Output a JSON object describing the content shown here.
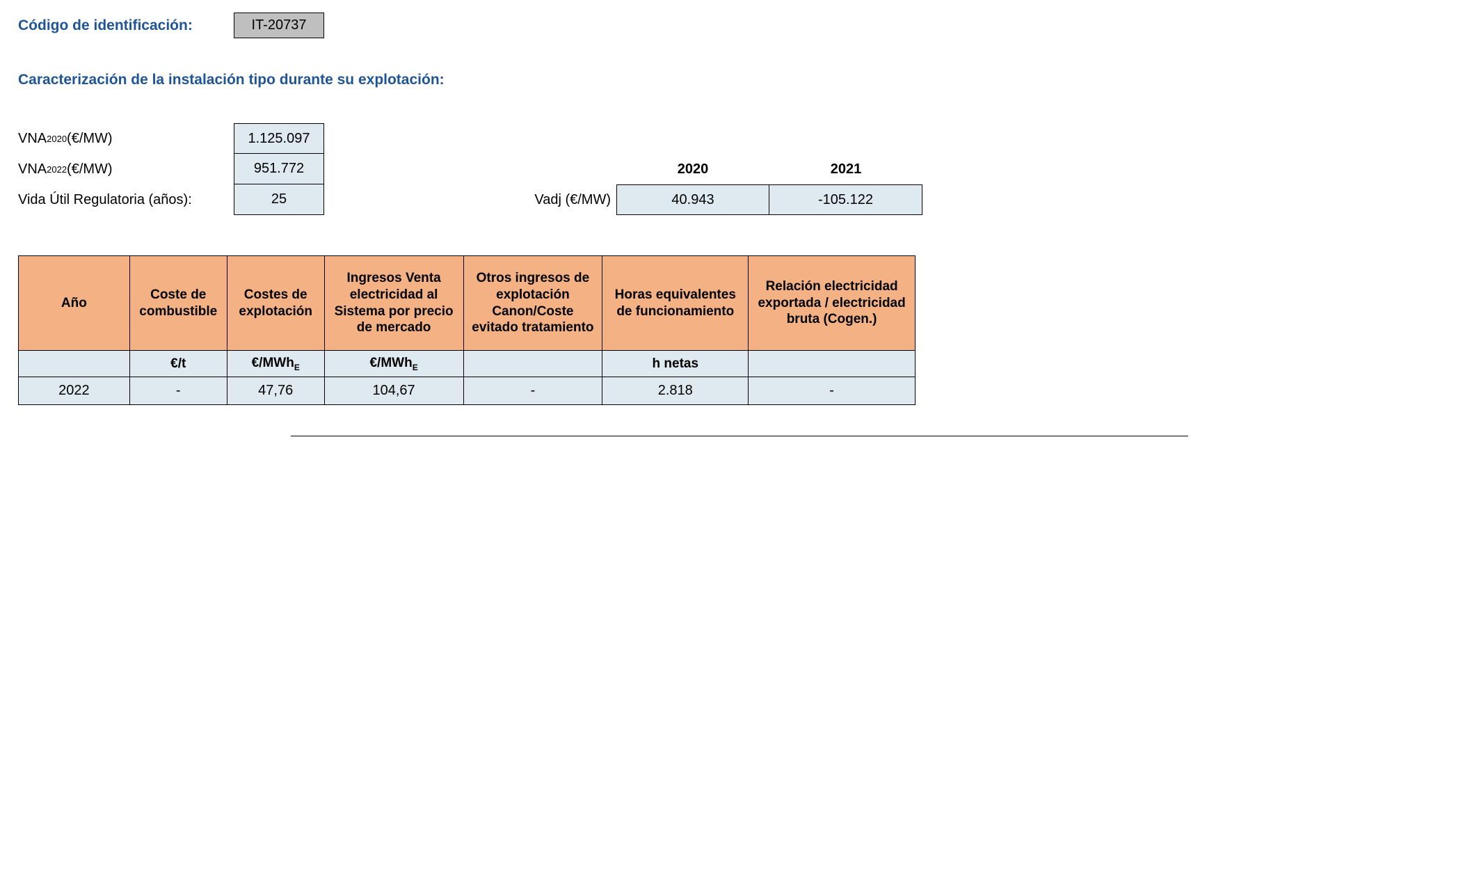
{
  "header": {
    "code_label": "Código de identificación:",
    "code_value": "IT-20737",
    "section_title": "Caracterización de la instalación tipo durante su explotación:"
  },
  "params": {
    "vna2020_label_pre": "VNA",
    "vna2020_sub": "2020",
    "vna_unit": " (€/MW)",
    "vna2020_value": "1.125.097",
    "vna2022_label_pre": "VNA",
    "vna2022_sub": "2022",
    "vna2022_value": "951.772",
    "life_label": "Vida Útil Regulatoria (años):",
    "life_value": "25"
  },
  "vadj": {
    "label": "Vadj (€/MW)",
    "years": [
      "2020",
      "2021"
    ],
    "values": [
      "40.943",
      "-105.122"
    ]
  },
  "table": {
    "columns": [
      "Año",
      "Coste de combustible",
      "Costes de explotación",
      "Ingresos Venta electricidad al Sistema por precio de mercado",
      "Otros ingresos de explotación Canon/Coste evitado tratamiento",
      "Horas equivalentes de funcionamiento",
      "Relación electricidad exportada / electricidad bruta (Cogen.)"
    ],
    "units": [
      "",
      "€/t",
      "€/MWh",
      "€/MWh",
      "",
      "h netas",
      ""
    ],
    "unit_sub": [
      "",
      "",
      "E",
      "E",
      "",
      "",
      ""
    ],
    "rows": [
      [
        "2022",
        "-",
        "47,76",
        "104,67",
        "-",
        "2.818",
        "-"
      ]
    ],
    "header_bg": "#f4b183",
    "cell_bg": "#deeaf0",
    "border_color": "#000000"
  },
  "colors": {
    "heading": "#1f5597",
    "code_box_bg": "#bfbfbf"
  }
}
